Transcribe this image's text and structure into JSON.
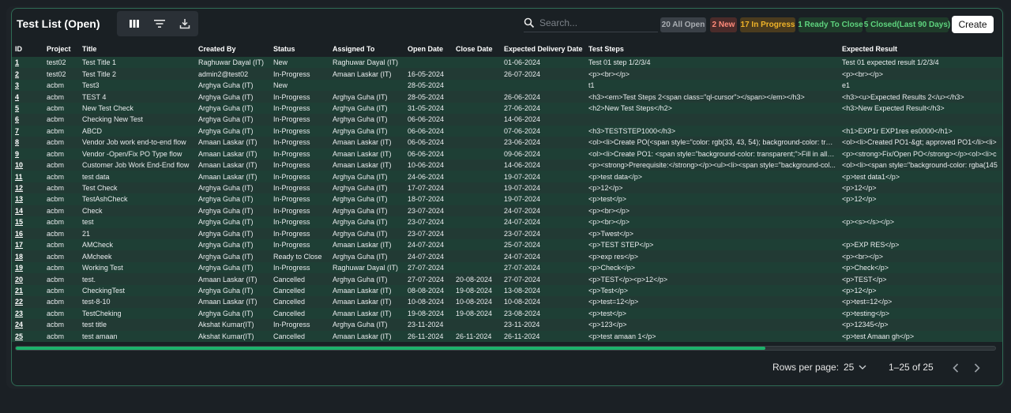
{
  "header": {
    "title": "Test List (Open)",
    "search_placeholder": "Search...",
    "create_label": "Create",
    "tools": [
      "columns-icon",
      "filter-icon",
      "download-icon"
    ]
  },
  "badges": {
    "all": "20 All Open",
    "new": "2 New",
    "in_progress": "17 In Progress",
    "ready": "1 Ready To Close",
    "closed": "5 Closed(Last 90 Days)"
  },
  "columns": [
    "ID",
    "Project",
    "Title",
    "Created By",
    "Status",
    "Assigned To",
    "Open Date",
    "Close Date",
    "Expected Delivery Date",
    "Test Steps",
    "Expected Result"
  ],
  "rows": [
    [
      "1",
      "test02",
      "Test Title 1",
      "Raghuwar Dayal (IT)",
      "New",
      "Raghuwar Dayal (IT)",
      "",
      "",
      "01-06-2024",
      "Test 01 step 1/2/3/4",
      "Test 01 expected result 1/2/3/4"
    ],
    [
      "2",
      "test02",
      "Test Title 2",
      "admin2@test02",
      "In-Progress",
      "Amaan Laskar (IT)",
      "16-05-2024",
      "",
      "26-07-2024",
      "<p><br></p>",
      "<p><br></p>"
    ],
    [
      "3",
      "acbm",
      "Test3",
      "Arghya Guha (IT)",
      "New",
      "",
      "28-05-2024",
      "",
      "",
      "t1",
      "e1"
    ],
    [
      "4",
      "acbm",
      "TEST 4",
      "Arghya Guha (IT)",
      "In-Progress",
      "Arghya Guha (IT)",
      "28-05-2024",
      "",
      "26-06-2024",
      "<h3><em>Test Steps 2<span class=\"ql-cursor\"></span></em></h3>",
      "<h3><u>Expected Results 2</u></h3>"
    ],
    [
      "5",
      "acbm",
      "New Test Check",
      "Arghya Guha (IT)",
      "In-Progress",
      "Arghya Guha (IT)",
      "31-05-2024",
      "",
      "27-06-2024",
      "<h2>New Test Steps</h2>",
      "<h3>New Expected Result</h3>"
    ],
    [
      "6",
      "acbm",
      "Checking New Test",
      "Arghya Guha (IT)",
      "In-Progress",
      "Arghya Guha (IT)",
      "06-06-2024",
      "",
      "14-06-2024",
      "",
      ""
    ],
    [
      "7",
      "acbm",
      "ABCD",
      "Arghya Guha (IT)",
      "In-Progress",
      "Arghya Guha (IT)",
      "06-06-2024",
      "",
      "07-06-2024",
      "<h3>TESTSTEP1000</h3>",
      "<h1>EXP1r EXP1res es0000</h1>"
    ],
    [
      "8",
      "acbm",
      "Vendor Job work end-to-end flow",
      "Amaan Laskar (IT)",
      "In-Progress",
      "Amaan Laskar (IT)",
      "06-06-2024",
      "",
      "23-06-2024",
      "<ol><li>Create PO(<span style=\"color: rgb(33, 43, 54); background-color: tran...",
      "<ol><li>Created PO1-&gt; approved PO1</li><li>"
    ],
    [
      "9",
      "acbm",
      "Vendor -Open/Fix PO Type flow",
      "Amaan Laskar (IT)",
      "In-Progress",
      "Amaan Laskar (IT)",
      "06-06-2024",
      "",
      "09-06-2024",
      "<ol><li>Create PO1: <span style=\"background-color: transparent;\">Fill in all t...",
      "<p><strong>Fix/Open PO</strong></p><ol><li>c"
    ],
    [
      "10",
      "acbm",
      "Customer Job Work End-End flow",
      "Amaan Laskar (IT)",
      "In-Progress",
      "Amaan Laskar (IT)",
      "10-06-2024",
      "",
      "14-06-2024",
      "<p><strong>Prerequisite:</strong></p><ul><li><span style=\"background-col...",
      "<ol><li><span style=\"background-color: rgba(145"
    ],
    [
      "11",
      "acbm",
      "test data",
      "Amaan Laskar (IT)",
      "In-Progress",
      "Arghya Guha (IT)",
      "24-06-2024",
      "",
      "19-07-2024",
      "<p>test data</p>",
      "<p>test data1</p>"
    ],
    [
      "12",
      "acbm",
      "Test Check",
      "Arghya Guha (IT)",
      "In-Progress",
      "Arghya Guha (IT)",
      "17-07-2024",
      "",
      "19-07-2024",
      "<p>12</p>",
      "<p>12</p>"
    ],
    [
      "13",
      "acbm",
      "TestAshCheck",
      "Arghya Guha (IT)",
      "In-Progress",
      "Arghya Guha (IT)",
      "18-07-2024",
      "",
      "19-07-2024",
      "<p>test</p>",
      "<p>12</p>"
    ],
    [
      "14",
      "acbm",
      "Check",
      "Arghya Guha (IT)",
      "In-Progress",
      "Arghya Guha (IT)",
      "23-07-2024",
      "",
      "24-07-2024",
      "<p><br></p>",
      ""
    ],
    [
      "15",
      "acbm",
      "test",
      "Arghya Guha (IT)",
      "In-Progress",
      "Arghya Guha (IT)",
      "23-07-2024",
      "",
      "24-07-2024",
      "<p><br></p>",
      "<p><s></s></p>"
    ],
    [
      "16",
      "acbm",
      "21",
      "Arghya Guha (IT)",
      "In-Progress",
      "Arghya Guha (IT)",
      "23-07-2024",
      "",
      "23-07-2024",
      "<p>Twest</p>",
      ""
    ],
    [
      "17",
      "acbm",
      "AMCheck",
      "Arghya Guha (IT)",
      "In-Progress",
      "Amaan Laskar (IT)",
      "24-07-2024",
      "",
      "25-07-2024",
      "<p>TEST STEP</p>",
      "<p>EXP RES</p>"
    ],
    [
      "18",
      "acbm",
      "AMcheek",
      "Arghya Guha (IT)",
      "Ready to Close",
      "Arghya Guha (IT)",
      "24-07-2024",
      "",
      "24-07-2024",
      "<p>exp res</p>",
      "<p><br></p>"
    ],
    [
      "19",
      "acbm",
      "Working Test",
      "Arghya Guha (IT)",
      "In-Progress",
      "Raghuwar Dayal (IT)",
      "27-07-2024",
      "",
      "27-07-2024",
      "<p>Check</p>",
      "<p>Check</p>"
    ],
    [
      "20",
      "acbm",
      "test.",
      "Amaan Laskar (IT)",
      "Cancelled",
      "Arghya Guha (IT)",
      "27-07-2024",
      "20-08-2024",
      "27-07-2024",
      "<p>TEST</p><p>12</p>",
      "<p>TEST</p>"
    ],
    [
      "21",
      "acbm",
      "CheckingTest",
      "Arghya Guha (IT)",
      "Cancelled",
      "Amaan Laskar (IT)",
      "08-08-2024",
      "19-08-2024",
      "13-08-2024",
      "<p>Test</p>",
      "<p>12</p>"
    ],
    [
      "22",
      "acbm",
      "test-8-10",
      "Amaan Laskar (IT)",
      "Cancelled",
      "Amaan Laskar (IT)",
      "10-08-2024",
      "10-08-2024",
      "10-08-2024",
      "<p>test=12</p>",
      "<p>test=12</p>"
    ],
    [
      "23",
      "acbm",
      "TestCheking",
      "Arghya Guha (IT)",
      "Cancelled",
      "Amaan Laskar (IT)",
      "19-08-2024",
      "19-08-2024",
      "23-08-2024",
      "<p>test</p>",
      "<p>testing</p>"
    ],
    [
      "24",
      "acbm",
      "test title",
      "Akshat Kumar(IT)",
      "In-Progress",
      "Arghya Guha (IT)",
      "23-11-2024",
      "",
      "23-11-2024",
      "<p>123</p>",
      "<p>12345</p>"
    ],
    [
      "25",
      "acbm",
      "test amaan",
      "Akshat Kumar(IT)",
      "Cancelled",
      "Amaan Laskar (IT)",
      "26-11-2024",
      "26-11-2024",
      "26-11-2024",
      "<p>test amaan 1</p>",
      "<p>test Amaan gh</p>"
    ]
  ],
  "scroll": {
    "position_fraction": 0.765
  },
  "footer": {
    "rows_per_page_label": "Rows per page:",
    "rows_per_page_value": "25",
    "range": "1–25 of 25"
  }
}
